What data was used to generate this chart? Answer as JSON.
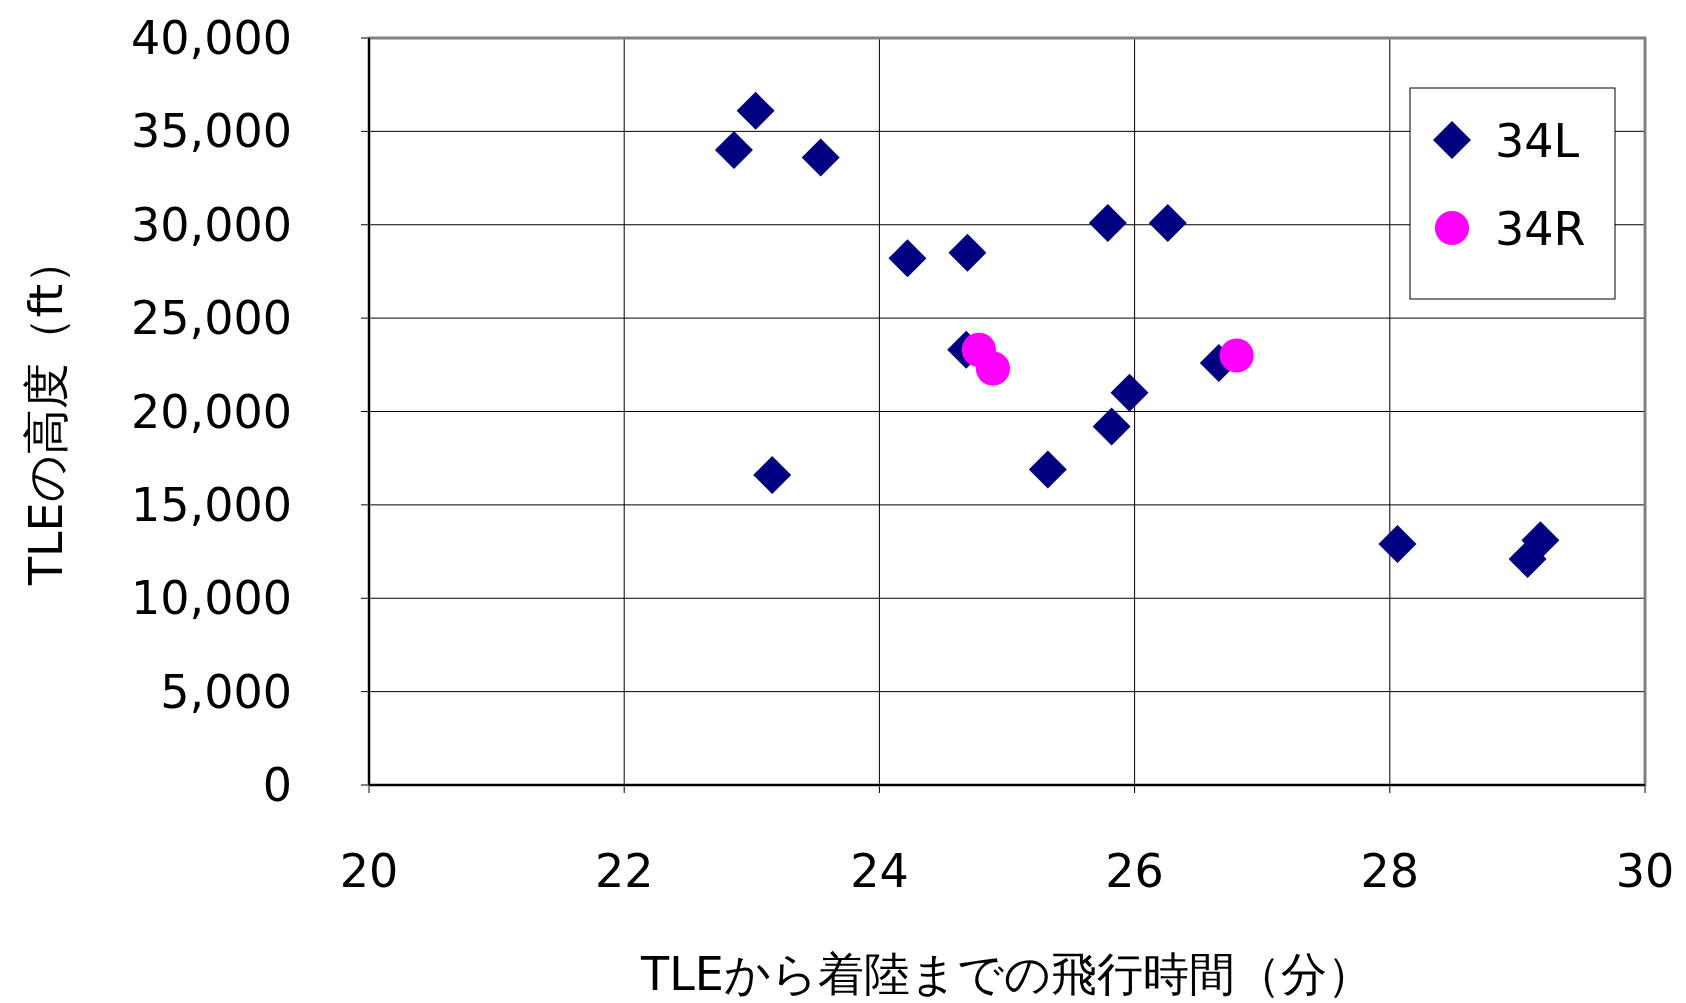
{
  "chart_data": {
    "type": "scatter",
    "xlabel": "TLEから着陸までの飛行時間（分）",
    "ylabel": "TLEの高度（ft）",
    "xlim": [
      20,
      30
    ],
    "xticks": [
      20,
      22,
      24,
      26,
      28,
      30
    ],
    "ylim": [
      0,
      40000
    ],
    "yticks": [
      0,
      {
        "value": 5000,
        "label": "5,000"
      },
      {
        "value": 10000,
        "label": "10,000"
      },
      {
        "value": 15000,
        "label": "15,000"
      },
      {
        "value": 20000,
        "label": "20,000"
      },
      {
        "value": 25000,
        "label": "25,000"
      },
      {
        "value": 30000,
        "label": "30,000"
      },
      {
        "value": 35000,
        "label": "35,000"
      },
      {
        "value": 40000,
        "label": "40,000"
      }
    ],
    "grid": true,
    "legend": "top right",
    "series": [
      {
        "name": "34L",
        "color": "#000080",
        "marker": "diamond",
        "x": [
          22.86,
          23.03,
          23.54,
          24.22,
          24.69,
          25.79,
          26.26,
          24.68,
          23.16,
          25.32,
          25.82,
          25.96,
          26.66,
          28.06,
          29.08,
          29.18
        ],
        "values": [
          34000,
          36100,
          33600,
          28200,
          28500,
          30100,
          30100,
          23300,
          16600,
          16900,
          19200,
          21000,
          22600,
          12900,
          12100,
          13100
        ]
      },
      {
        "name": "34R",
        "color": "#ff00ff",
        "marker": "circle",
        "x": [
          24.78,
          24.89,
          26.8
        ],
        "values": [
          23300,
          22300,
          23000
        ]
      }
    ]
  }
}
